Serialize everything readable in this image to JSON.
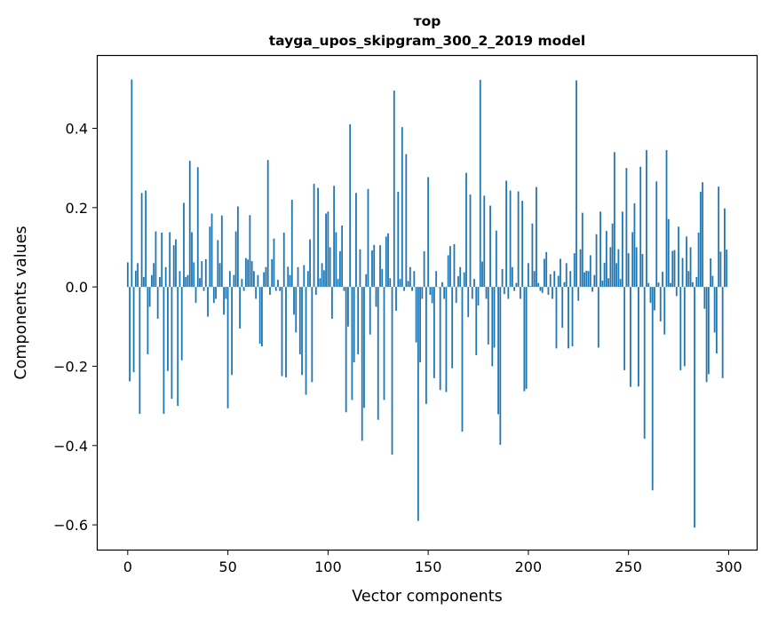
{
  "chart_data": {
    "type": "bar",
    "title_line1": "тор",
    "title_line2": "tayga_upos_skipgram_300_2_2019 model",
    "xlabel": "Vector components",
    "ylabel": "Components values",
    "xlim": [
      -15,
      314
    ],
    "ylim": [
      -0.6625,
      0.5825
    ],
    "xticks": [
      0,
      50,
      100,
      150,
      200,
      250,
      300
    ],
    "xtick_labels": [
      "0",
      "50",
      "100",
      "150",
      "200",
      "250",
      "300"
    ],
    "yticks": [
      -0.6,
      -0.4,
      -0.2,
      0.0,
      0.2,
      0.4
    ],
    "ytick_labels": [
      "−0.6",
      "−0.4",
      "−0.2",
      "0.0",
      "0.2",
      "0.4"
    ],
    "color": "#1f77b4",
    "values": [
      0.062,
      -0.238,
      0.523,
      -0.215,
      0.041,
      0.06,
      -0.32,
      0.237,
      0.025,
      0.243,
      -0.17,
      -0.05,
      0.03,
      0.06,
      0.14,
      -0.08,
      0.025,
      0.137,
      -0.32,
      0.05,
      -0.212,
      0.138,
      -0.282,
      0.105,
      0.12,
      -0.3,
      0.04,
      -0.185,
      0.212,
      0.025,
      0.03,
      0.318,
      0.138,
      0.062,
      -0.04,
      0.302,
      0.022,
      0.065,
      -0.01,
      0.07,
      -0.075,
      0.152,
      0.185,
      -0.04,
      -0.03,
      0.118,
      0.06,
      0.18,
      -0.07,
      -0.03,
      -0.306,
      0.04,
      -0.222,
      0.03,
      0.14,
      0.203,
      -0.105,
      0.02,
      -0.01,
      0.073,
      0.069,
      0.181,
      0.065,
      0.04,
      -0.03,
      0.03,
      -0.143,
      -0.15,
      0.037,
      0.05,
      0.32,
      -0.02,
      0.07,
      0.122,
      -0.01,
      0.018,
      -0.01,
      -0.225,
      0.137,
      -0.228,
      0.051,
      0.03,
      0.22,
      -0.07,
      -0.115,
      0.05,
      -0.17,
      -0.222,
      0.055,
      -0.272,
      0.04,
      0.12,
      -0.24,
      0.26,
      -0.02,
      0.25,
      0.022,
      0.06,
      0.042,
      0.185,
      0.19,
      0.1,
      -0.08,
      0.255,
      0.138,
      0.02,
      0.09,
      0.155,
      -0.01,
      -0.316,
      -0.1,
      0.41,
      -0.285,
      -0.19,
      0.237,
      -0.17,
      0.095,
      -0.388,
      -0.305,
      0.032,
      0.247,
      -0.12,
      0.092,
      0.106,
      -0.05,
      -0.335,
      0.105,
      0.045,
      -0.285,
      0.127,
      0.135,
      0.022,
      -0.423,
      0.495,
      -0.06,
      0.24,
      0.02,
      0.403,
      -0.01,
      0.335,
      0.015,
      0.05,
      -0.01,
      0.04,
      -0.14,
      -0.59,
      -0.19,
      -0.03,
      0.09,
      -0.295,
      0.277,
      -0.02,
      -0.041,
      -0.23,
      0.04,
      0.0,
      -0.26,
      0.012,
      -0.03,
      -0.265,
      0.08,
      0.103,
      -0.205,
      0.108,
      -0.04,
      0.027,
      0.05,
      -0.365,
      0.037,
      0.288,
      -0.076,
      0.233,
      -0.03,
      0.02,
      -0.172,
      -0.047,
      0.522,
      0.064,
      0.23,
      -0.03,
      -0.145,
      0.205,
      -0.2,
      -0.153,
      0.142,
      -0.321,
      -0.398,
      0.045,
      -0.018,
      0.268,
      -0.03,
      0.243,
      0.05,
      -0.01,
      0.01,
      0.241,
      -0.03,
      0.217,
      -0.263,
      -0.257,
      0.06,
      0.002,
      0.16,
      0.04,
      0.252,
      0.01,
      -0.01,
      -0.015,
      0.071,
      0.088,
      -0.02,
      0.032,
      -0.03,
      0.04,
      -0.155,
      0.028,
      0.071,
      -0.103,
      0.012,
      0.06,
      -0.155,
      0.04,
      -0.15,
      0.085,
      0.521,
      -0.035,
      0.095,
      0.187,
      0.037,
      0.041,
      0.04,
      0.08,
      -0.012,
      0.03,
      0.133,
      -0.153,
      0.19,
      0.016,
      0.061,
      0.141,
      0.022,
      0.1,
      0.16,
      0.34,
      0.06,
      0.095,
      0.02,
      0.19,
      -0.21,
      0.3,
      0.085,
      -0.252,
      0.138,
      0.211,
      0.1,
      -0.251,
      0.303,
      0.083,
      -0.383,
      0.345,
      0.01,
      -0.04,
      -0.513,
      -0.059,
      0.266,
      0.011,
      -0.087,
      0.038,
      -0.12,
      0.345,
      0.171,
      0.01,
      0.091,
      0.093,
      -0.023,
      0.152,
      -0.21,
      0.073,
      -0.2,
      0.127,
      0.04,
      0.1,
      0.012,
      -0.607,
      0.025,
      0.137,
      0.24,
      0.264,
      -0.055,
      -0.24,
      -0.22,
      0.072,
      0.028,
      -0.115,
      -0.168,
      0.253,
      0.089,
      -0.23,
      0.198,
      0.094
    ]
  }
}
